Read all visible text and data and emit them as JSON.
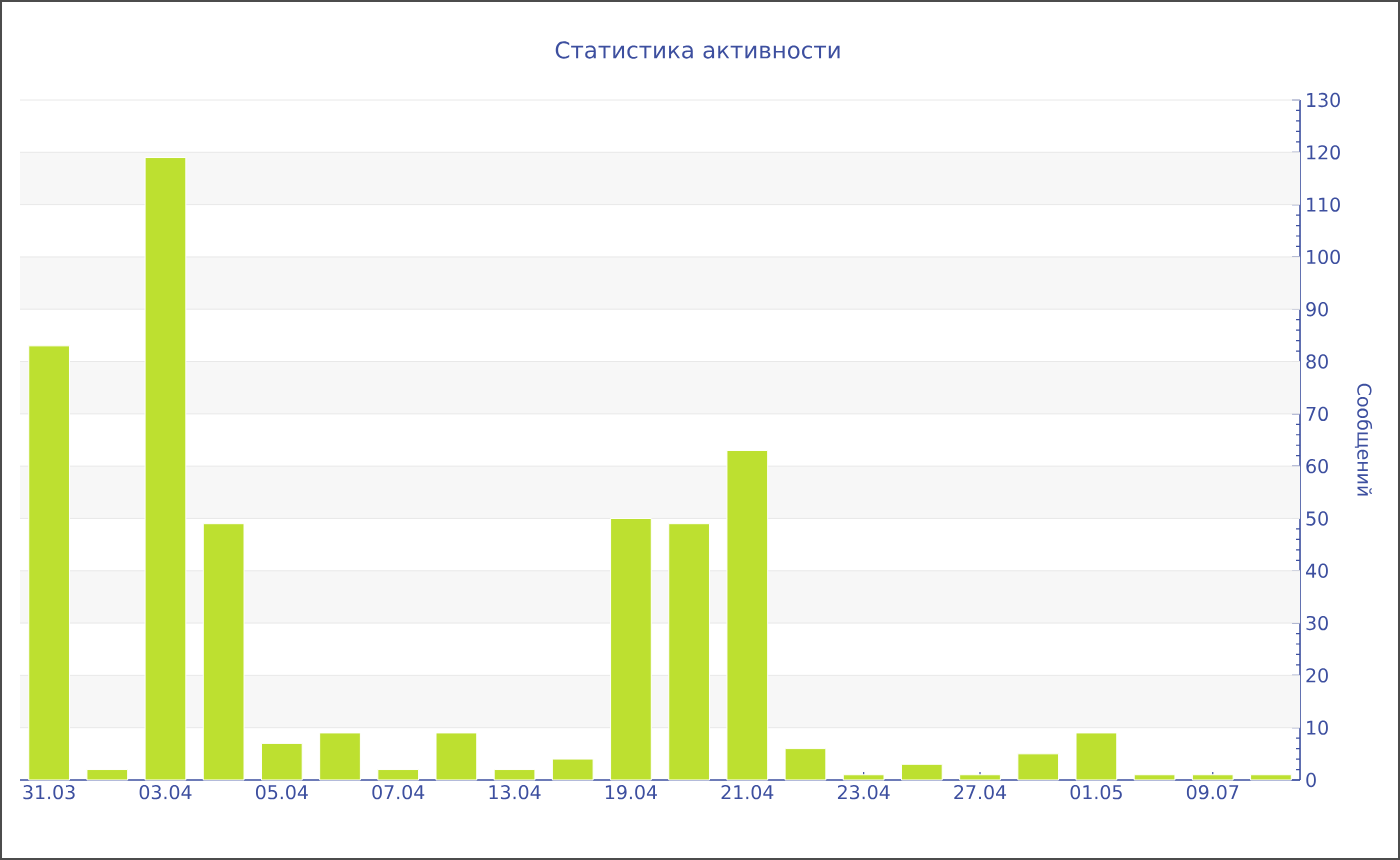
{
  "chart_data": {
    "type": "bar",
    "title": "Статистика активности",
    "ylabel": "Сообщений",
    "categories": [
      "31.03",
      null,
      "03.04",
      null,
      "05.04",
      null,
      "07.04",
      null,
      "13.04",
      null,
      "19.04",
      null,
      "21.04",
      null,
      "23.04",
      null,
      "27.04",
      null,
      "01.05",
      null,
      "09.07",
      null
    ],
    "values": [
      83,
      2,
      119,
      49,
      7,
      9,
      2,
      9,
      2,
      4,
      50,
      49,
      63,
      6,
      1,
      3,
      1,
      5,
      9,
      1,
      1,
      1
    ],
    "color": "#bde030",
    "ylim": [
      0,
      130
    ],
    "yticks": [
      0,
      10,
      20,
      30,
      40,
      50,
      60,
      70,
      80,
      90,
      100,
      110,
      120,
      130
    ],
    "grid": "y"
  }
}
